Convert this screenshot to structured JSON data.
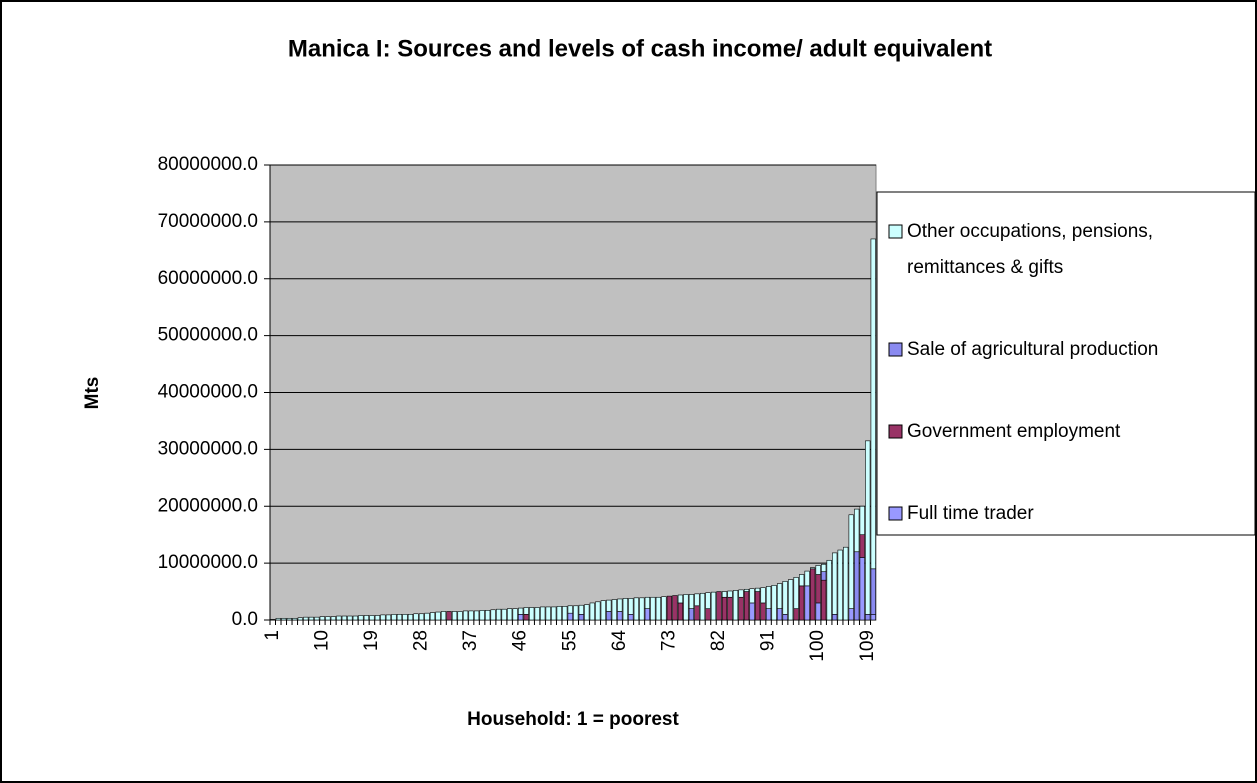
{
  "chart_data": {
    "type": "stacked_bar",
    "title": "Manica I: Sources and levels of cash income/ adult equivalent",
    "x_label": "Household: 1 = poorest",
    "y_label": "Mts",
    "categories": [
      "1",
      null,
      null,
      null,
      null,
      null,
      null,
      null,
      null,
      "10",
      null,
      null,
      null,
      null,
      null,
      null,
      null,
      null,
      "19",
      null,
      null,
      null,
      null,
      null,
      null,
      null,
      null,
      "28",
      null,
      null,
      null,
      null,
      null,
      null,
      null,
      null,
      "37",
      null,
      null,
      null,
      null,
      null,
      null,
      null,
      null,
      "46",
      null,
      null,
      null,
      null,
      null,
      null,
      null,
      null,
      "55",
      null,
      null,
      null,
      null,
      null,
      null,
      null,
      null,
      "64",
      null,
      null,
      null,
      null,
      null,
      null,
      null,
      null,
      "73",
      null,
      null,
      null,
      null,
      null,
      null,
      null,
      null,
      "82",
      null,
      null,
      null,
      null,
      null,
      null,
      null,
      null,
      "91",
      null,
      null,
      null,
      null,
      null,
      null,
      null,
      null,
      "100",
      null,
      null,
      null,
      null,
      null,
      null,
      null,
      null,
      "109",
      null
    ],
    "series": [
      {
        "name": "Full time trader",
        "color": "#9999ff",
        "values": [
          0,
          0,
          0,
          0,
          0,
          0,
          0,
          0,
          0,
          0,
          0,
          0,
          0,
          0,
          0,
          0,
          0,
          0,
          0,
          0,
          0,
          0,
          0,
          0,
          0,
          0,
          0,
          0,
          0,
          0,
          0,
          0,
          0,
          0,
          0,
          0,
          0,
          0,
          0,
          0,
          0,
          0,
          0,
          0,
          0,
          1000000,
          0,
          0,
          0,
          0,
          0,
          0,
          0,
          0,
          1200000,
          0,
          0,
          0,
          0,
          0,
          0,
          0,
          0,
          1500000,
          0,
          1000000,
          0,
          0,
          2000000,
          0,
          0,
          0,
          0,
          0,
          0,
          0,
          0,
          0,
          0,
          0,
          0,
          0,
          0,
          0,
          0,
          0,
          0,
          3000000,
          0,
          0,
          2000000,
          0,
          2000000,
          0,
          0,
          0,
          0,
          6000000,
          0,
          3000000,
          0,
          0,
          0,
          0,
          0,
          2000000,
          0,
          11000000,
          0,
          1000000
        ]
      },
      {
        "name": "Government employment",
        "color": "#993366",
        "values": [
          0,
          0,
          0,
          0,
          0,
          0,
          0,
          0,
          0,
          0,
          0,
          0,
          0,
          0,
          0,
          0,
          0,
          0,
          0,
          0,
          0,
          0,
          0,
          0,
          0,
          0,
          0,
          0,
          0,
          0,
          0,
          0,
          1500000,
          0,
          0,
          0,
          0,
          0,
          0,
          0,
          0,
          0,
          0,
          0,
          0,
          0,
          1000000,
          0,
          0,
          0,
          0,
          0,
          0,
          0,
          0,
          0,
          0,
          0,
          0,
          0,
          0,
          0,
          0,
          0,
          0,
          0,
          0,
          0,
          0,
          0,
          0,
          0,
          4200000,
          4300000,
          3000000,
          0,
          0,
          2500000,
          0,
          2000000,
          0,
          5000000,
          4000000,
          4000000,
          0,
          4000000,
          5000000,
          0,
          5000000,
          3000000,
          0,
          0,
          0,
          0,
          0,
          2000000,
          6000000,
          0,
          9000000,
          5000000,
          7000000,
          0,
          0,
          0,
          0,
          0,
          0,
          4000000,
          0,
          0
        ]
      },
      {
        "name": "Sale of agricultural production",
        "color": "#8a8af0",
        "values": [
          0,
          0,
          0,
          0,
          0,
          0,
          0,
          0,
          0,
          0,
          0,
          0,
          0,
          0,
          0,
          0,
          0,
          0,
          0,
          0,
          0,
          0,
          0,
          0,
          0,
          0,
          0,
          0,
          0,
          0,
          0,
          0,
          0,
          0,
          0,
          0,
          0,
          0,
          0,
          0,
          0,
          0,
          0,
          0,
          0,
          0,
          0,
          0,
          0,
          0,
          0,
          0,
          0,
          0,
          0,
          0,
          1000000,
          0,
          0,
          0,
          0,
          1500000,
          0,
          0,
          0,
          0,
          0,
          0,
          0,
          0,
          0,
          0,
          0,
          0,
          0,
          0,
          2000000,
          0,
          0,
          0,
          0,
          0,
          0,
          0,
          0,
          0,
          0,
          0,
          0,
          0,
          0,
          0,
          0,
          1000000,
          0,
          0,
          0,
          0,
          0,
          0,
          1500000,
          0,
          1000000,
          0,
          0,
          0,
          12000000,
          0,
          1000000,
          8000000
        ]
      },
      {
        "name": "Other occupations, pensions, remittances & gifts",
        "color": "#ccffff",
        "values": [
          100000,
          300000,
          300000,
          300000,
          300000,
          400000,
          500000,
          500000,
          500000,
          600000,
          600000,
          600000,
          700000,
          700000,
          700000,
          700000,
          800000,
          800000,
          800000,
          800000,
          900000,
          900000,
          1000000,
          1000000,
          1000000,
          1000000,
          1100000,
          1100000,
          1200000,
          1300000,
          1400000,
          1500000,
          0,
          1500000,
          1500000,
          1600000,
          1600000,
          1600000,
          1700000,
          1700000,
          1800000,
          1900000,
          1900000,
          2000000,
          2000000,
          1100000,
          1200000,
          2200000,
          2200000,
          2300000,
          2300000,
          2300000,
          2400000,
          2400000,
          1300000,
          2500000,
          1600000,
          2700000,
          3000000,
          3200000,
          3400000,
          2000000,
          3600000,
          2200000,
          3800000,
          2800000,
          3900000,
          3900000,
          2000000,
          4000000,
          4000000,
          4100000,
          0,
          0,
          1400000,
          4500000,
          2500000,
          2100000,
          4700000,
          2800000,
          4900000,
          0,
          1000000,
          1100000,
          5200000,
          1300000,
          400000,
          2500000,
          600000,
          2700000,
          3900000,
          6100000,
          4400000,
          5800000,
          7100000,
          5500000,
          2000000,
          2600000,
          200000,
          1600000,
          1300000,
          10500000,
          10800000,
          12300000,
          12800000,
          16500000,
          7500000,
          5000000,
          30500000,
          58000000
        ]
      }
    ],
    "ylim": [
      0,
      80000000
    ],
    "yticks": [
      {
        "value": 0,
        "label": "0.0"
      },
      {
        "value": 10000000,
        "label": "10000000.0"
      },
      {
        "value": 20000000,
        "label": "20000000.0"
      },
      {
        "value": 30000000,
        "label": "30000000.0"
      },
      {
        "value": 40000000,
        "label": "40000000.0"
      },
      {
        "value": 50000000,
        "label": "50000000.0"
      },
      {
        "value": 60000000,
        "label": "60000000.0"
      },
      {
        "value": 70000000,
        "label": "70000000.0"
      },
      {
        "value": 80000000,
        "label": "80000000.0"
      }
    ],
    "grid": true,
    "plot_background": "#c0c0c0",
    "legend": "right"
  }
}
